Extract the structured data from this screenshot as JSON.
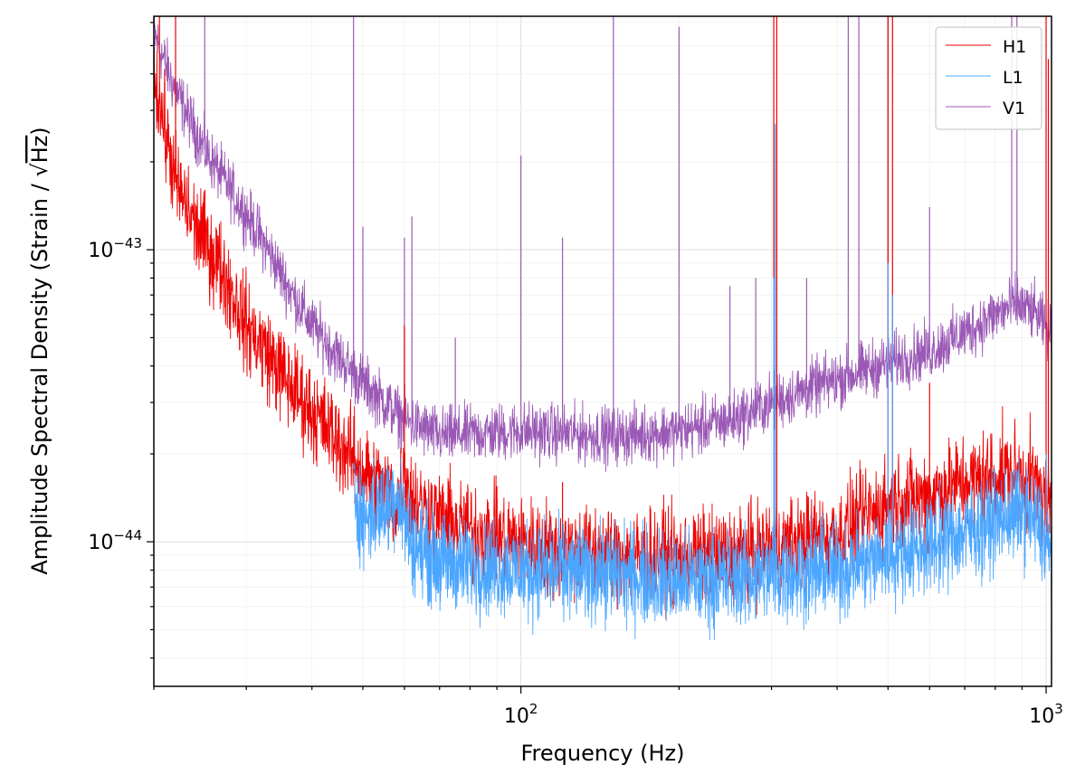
{
  "chart_data": {
    "type": "line",
    "title": "",
    "xlabel": "Frequency (Hz)",
    "ylabel_main": "Amplitude Spectral Density (Strain / ",
    "ylabel_sqrt": "Hz",
    "ylabel_close": ")",
    "xscale": "log",
    "yscale": "log",
    "xlim": [
      20,
      1024
    ],
    "ylim": [
      3.2e-45,
      6.3e-43
    ],
    "grid": true,
    "legend_position": "top-right",
    "x_ticks": [
      {
        "value": 100,
        "base": "10",
        "exp": "2"
      },
      {
        "value": 1000,
        "base": "10",
        "exp": "3"
      }
    ],
    "y_ticks": [
      {
        "value": 1e-44,
        "base": "10",
        "exp": "−44"
      },
      {
        "value": 1e-43,
        "base": "10",
        "exp": "−43"
      }
    ],
    "series": [
      {
        "name": "H1",
        "color": "#ee0000",
        "baseline": [
          [
            20,
            4e-43
          ],
          [
            22,
            1.7e-43
          ],
          [
            24,
            1.2e-43
          ],
          [
            27,
            8.5e-44
          ],
          [
            30,
            5.5e-44
          ],
          [
            33,
            4.4e-44
          ],
          [
            36,
            3.5e-44
          ],
          [
            40,
            2.8e-44
          ],
          [
            45,
            2.2e-44
          ],
          [
            50,
            1.75e-44
          ],
          [
            55,
            1.5e-44
          ],
          [
            58,
            1.35e-44
          ],
          [
            60,
            1.8e-44
          ],
          [
            62,
            1.4e-44
          ],
          [
            70,
            1.2e-44
          ],
          [
            80,
            1.1e-44
          ],
          [
            100,
            9.8e-45
          ],
          [
            150,
            9e-45
          ],
          [
            200,
            8.8e-45
          ],
          [
            250,
            9e-45
          ],
          [
            300,
            9.6e-45
          ],
          [
            400,
            1.05e-44
          ],
          [
            450,
            1.2e-44
          ],
          [
            500,
            1.35e-44
          ],
          [
            600,
            1.45e-44
          ],
          [
            700,
            1.6e-44
          ],
          [
            800,
            1.7e-44
          ],
          [
            900,
            1.72e-44
          ],
          [
            960,
            1.55e-44
          ],
          [
            1024,
            1.3e-44
          ]
        ],
        "noise": 0.1,
        "lines": [
          [
            20.5,
            7e-43
          ],
          [
            22,
            7e-43
          ],
          [
            35,
            4.2e-44
          ],
          [
            60,
            5.5e-44
          ],
          [
            90,
            1.55e-44
          ],
          [
            120,
            1.6e-44
          ],
          [
            303,
            7e-43
          ],
          [
            307,
            7e-43
          ],
          [
            500,
            7e-43
          ],
          [
            510,
            7e-43
          ],
          [
            600,
            3.5e-44
          ],
          [
            1000,
            7e-43
          ],
          [
            1010,
            4.5e-43
          ]
        ]
      },
      {
        "name": "L1",
        "color": "#4ba6ff",
        "baseline": [
          [
            48,
            1.55e-44
          ],
          [
            50,
            1.2e-44
          ],
          [
            55,
            1.3e-44
          ],
          [
            58,
            1.5e-44
          ],
          [
            60,
            1.2e-44
          ],
          [
            62,
            1e-44
          ],
          [
            70,
            8.5e-45
          ],
          [
            100,
            8e-45
          ],
          [
            150,
            7.8e-45
          ],
          [
            200,
            7.3e-45
          ],
          [
            250,
            7.5e-45
          ],
          [
            300,
            7.8e-45
          ],
          [
            400,
            8e-45
          ],
          [
            500,
            9e-45
          ],
          [
            600,
            9.8e-45
          ],
          [
            700,
            1.08e-44
          ],
          [
            800,
            1.18e-44
          ],
          [
            900,
            1.28e-44
          ],
          [
            960,
            1.15e-44
          ],
          [
            1024,
            8.7e-45
          ]
        ],
        "noise": 0.1,
        "lines": [
          [
            303,
            8e-44
          ],
          [
            305,
            2.7e-43
          ],
          [
            500,
            9e-44
          ],
          [
            510,
            7e-44
          ],
          [
            1000,
            2e-44
          ]
        ]
      },
      {
        "name": "V1",
        "color": "#9b59b6",
        "baseline": [
          [
            20,
            5.5e-43
          ],
          [
            22,
            3.5e-43
          ],
          [
            25,
            2.2e-43
          ],
          [
            28,
            1.6e-43
          ],
          [
            32,
            1.1e-43
          ],
          [
            36,
            7.5e-44
          ],
          [
            40,
            5.5e-44
          ],
          [
            45,
            4.3e-44
          ],
          [
            50,
            3.5e-44
          ],
          [
            55,
            3e-44
          ],
          [
            60,
            2.6e-44
          ],
          [
            70,
            2.3e-44
          ],
          [
            100,
            2.4e-44
          ],
          [
            150,
            2.3e-44
          ],
          [
            200,
            2.4e-44
          ],
          [
            250,
            2.6e-44
          ],
          [
            300,
            3e-44
          ],
          [
            400,
            3.6e-44
          ],
          [
            500,
            4.1e-44
          ],
          [
            600,
            4.5e-44
          ],
          [
            700,
            5.2e-44
          ],
          [
            800,
            6e-44
          ],
          [
            880,
            6.5e-44
          ],
          [
            950,
            6.1e-44
          ],
          [
            1024,
            5.1e-44
          ]
        ],
        "noise": 0.06,
        "lines": [
          [
            25,
            7e-43
          ],
          [
            48,
            7e-43
          ],
          [
            50,
            1.2e-43
          ],
          [
            60,
            1.1e-43
          ],
          [
            62,
            1.3e-43
          ],
          [
            75,
            5e-44
          ],
          [
            100,
            2.1e-43
          ],
          [
            120,
            1.1e-43
          ],
          [
            150,
            7e-43
          ],
          [
            200,
            5.8e-43
          ],
          [
            250,
            7.5e-44
          ],
          [
            280,
            8e-44
          ],
          [
            350,
            8e-44
          ],
          [
            420,
            7e-43
          ],
          [
            440,
            7e-43
          ],
          [
            500,
            7e-43
          ],
          [
            600,
            1.4e-43
          ],
          [
            860,
            7e-43
          ],
          [
            880,
            7e-43
          ]
        ]
      }
    ]
  }
}
